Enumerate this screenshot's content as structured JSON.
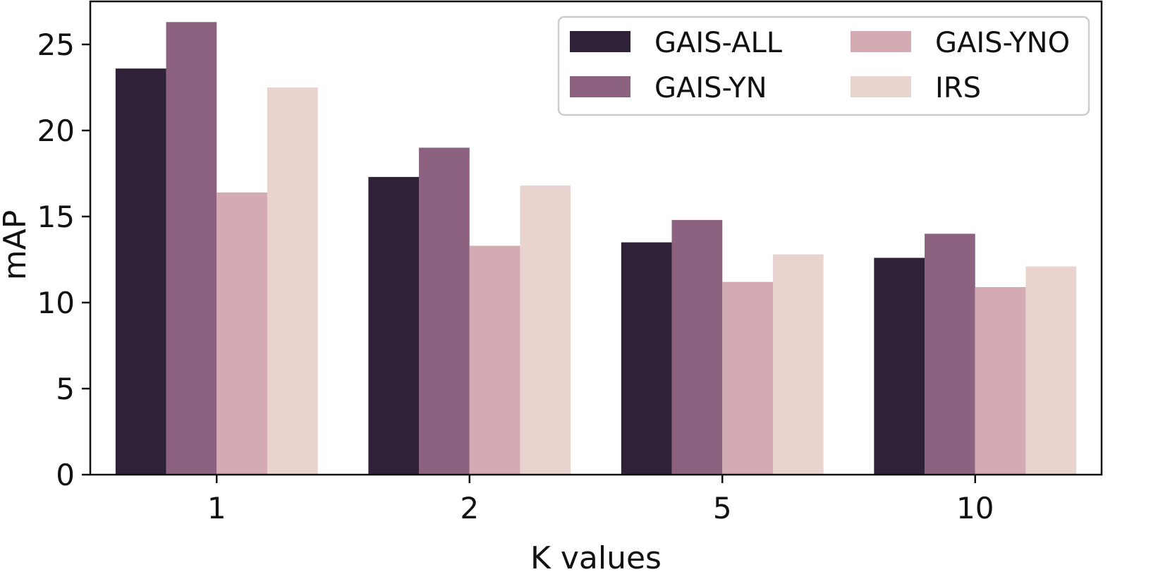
{
  "chart_data": {
    "type": "bar",
    "title": "",
    "xlabel": "K values",
    "ylabel": "mAP",
    "categories": [
      "1",
      "2",
      "5",
      "10"
    ],
    "yticks": [
      "0",
      "5",
      "10",
      "15",
      "20",
      "25"
    ],
    "ylim": [
      0,
      27.5
    ],
    "grid": false,
    "legend_position": "top-right",
    "series": [
      {
        "name": "GAIS-ALL",
        "color": "#2e2138",
        "values": [
          23.6,
          17.3,
          13.5,
          12.6
        ]
      },
      {
        "name": "GAIS-YN",
        "color": "#8c6280",
        "values": [
          26.3,
          19.0,
          14.8,
          14.0
        ]
      },
      {
        "name": "GAIS-YNO",
        "color": "#d4abb2",
        "values": [
          16.4,
          13.3,
          11.2,
          10.9
        ]
      },
      {
        "name": "IRS",
        "color": "#e9d3cf",
        "values": [
          22.5,
          16.8,
          12.8,
          12.1
        ]
      }
    ]
  }
}
